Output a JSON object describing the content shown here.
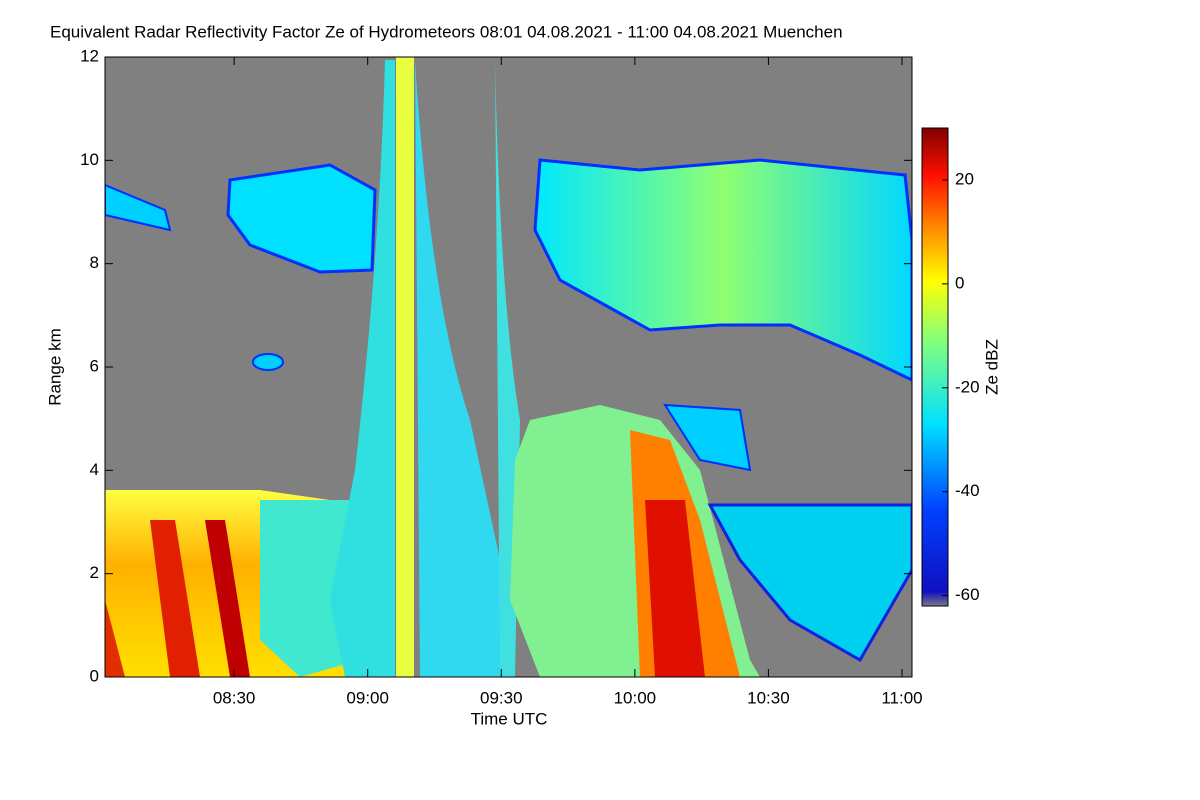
{
  "chart_data": {
    "type": "heatmap",
    "title": "Equivalent Radar Reflectivity Factor Ze of Hydrometeors   08:01 04.08.2021 - 11:00 04.08.2021 Muenchen",
    "xlabel": "Time UTC",
    "ylabel": "Range km",
    "xlim": [
      "08:01",
      "11:00"
    ],
    "xticks": [
      "08:30",
      "09:00",
      "09:30",
      "10:00",
      "10:30",
      "11:00"
    ],
    "ylim": [
      0,
      12
    ],
    "yticks": [
      0,
      2,
      4,
      6,
      8,
      10,
      12
    ],
    "colorbar_label": "Ze dBZ",
    "clim": [
      -62,
      30
    ],
    "cticks": [
      -60,
      -40,
      -20,
      0,
      20
    ],
    "background_color": "#808080"
  }
}
